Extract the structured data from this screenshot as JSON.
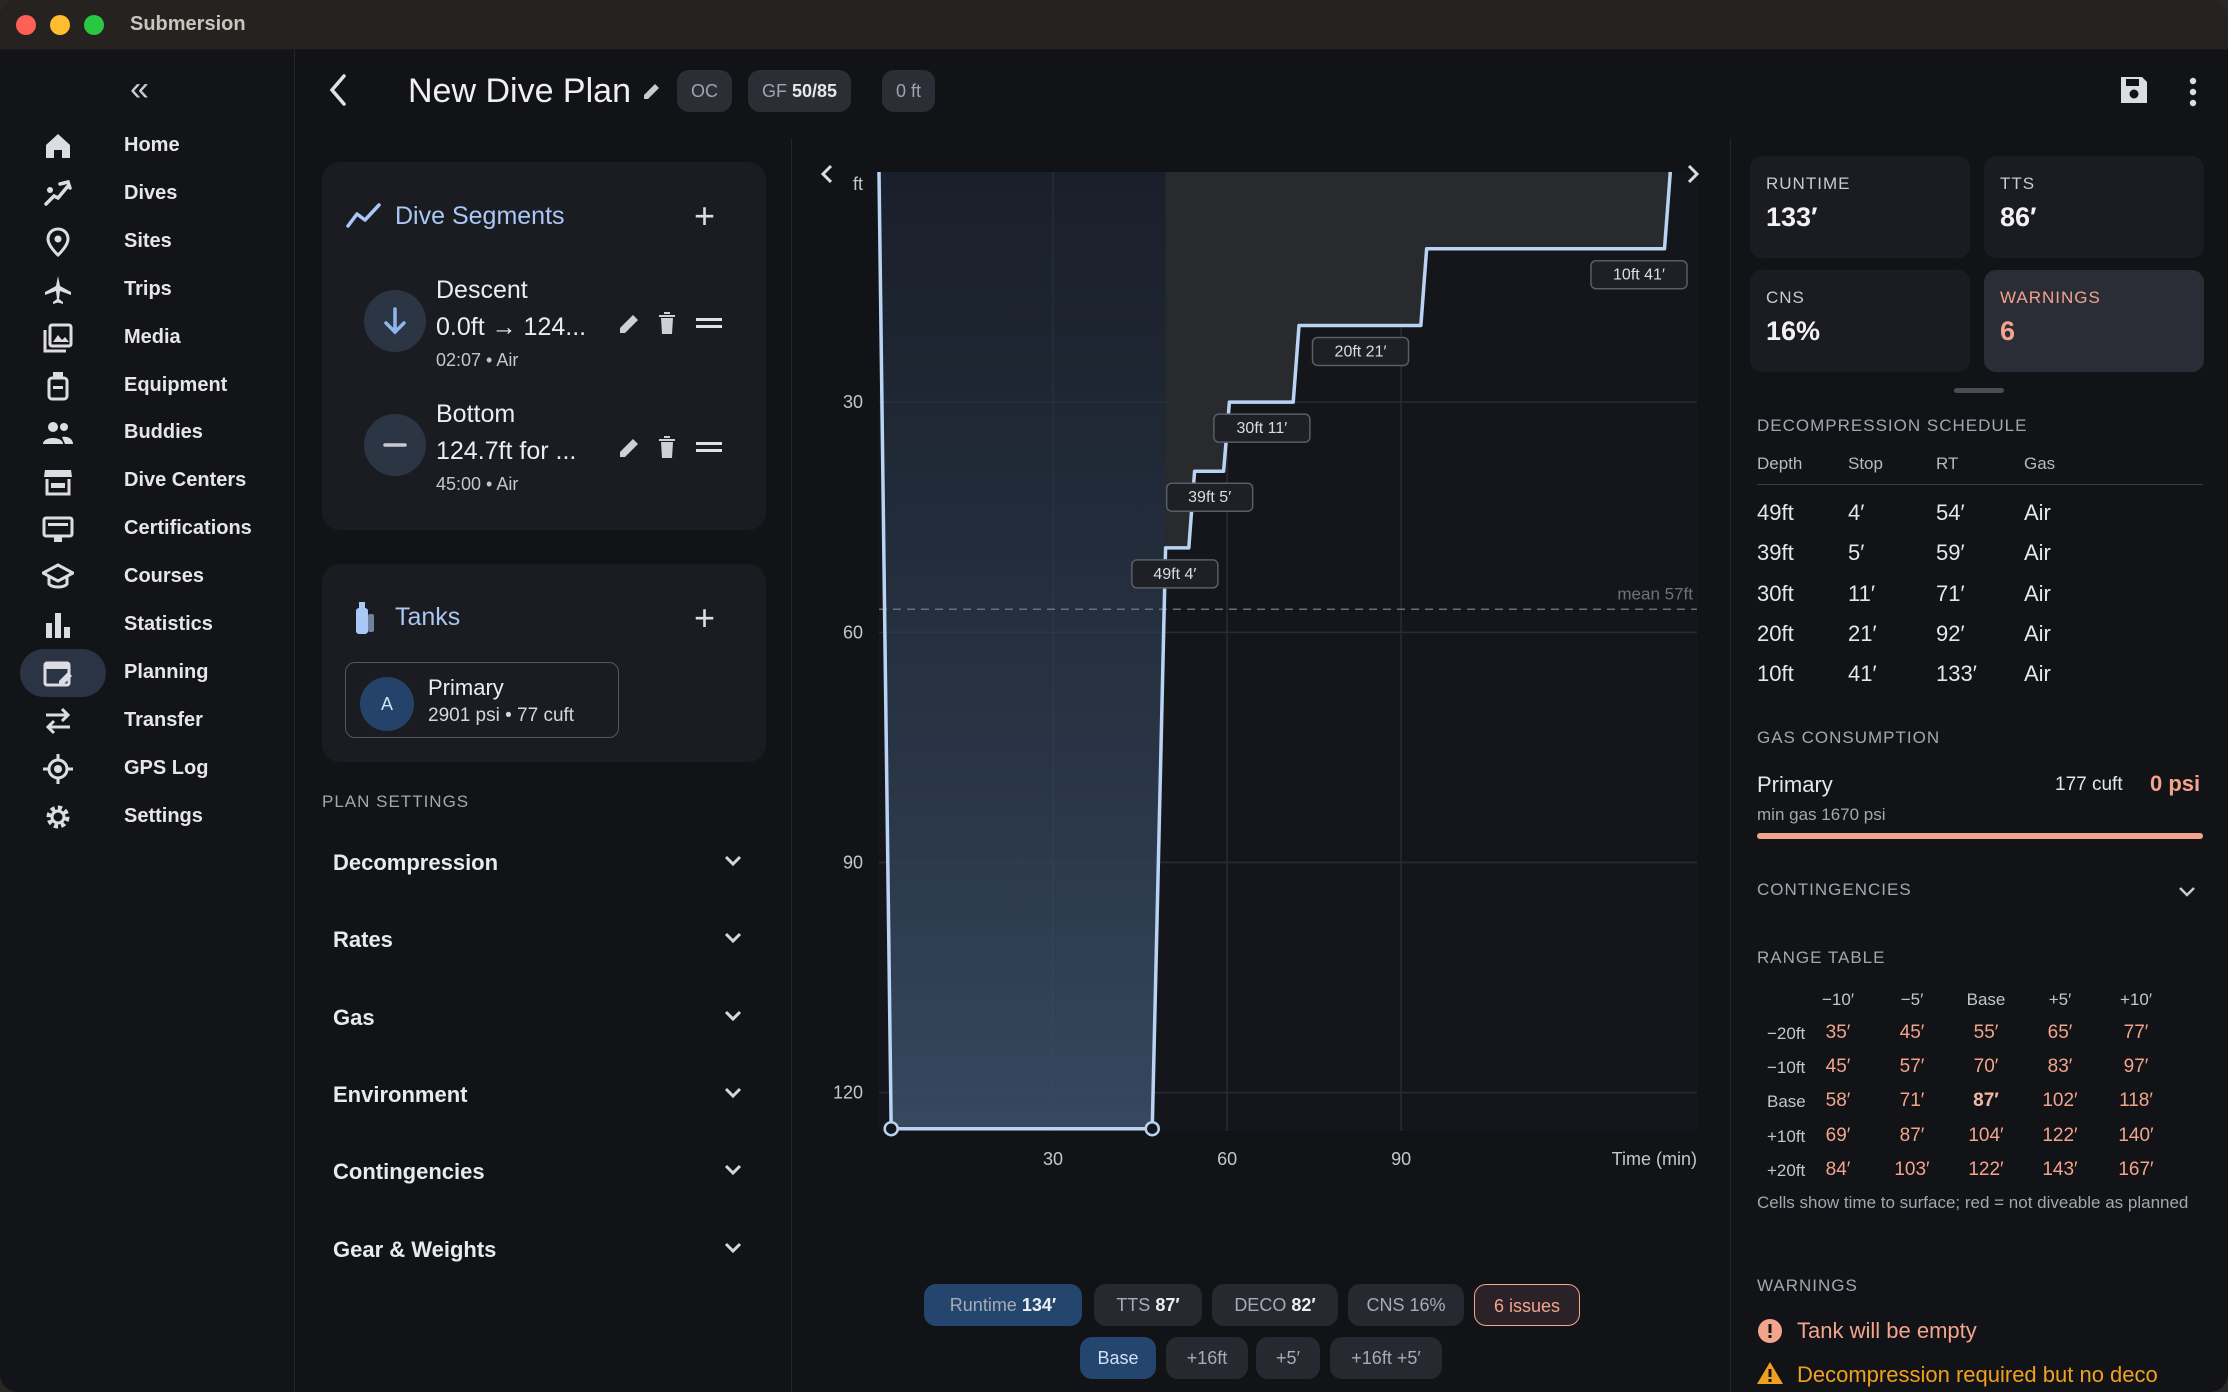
{
  "app": {
    "title": "Submersion"
  },
  "sidebar": {
    "items": [
      {
        "label": "Home",
        "icon": "home-icon"
      },
      {
        "label": "Dives",
        "icon": "diver-icon"
      },
      {
        "label": "Sites",
        "icon": "location-pin-icon"
      },
      {
        "label": "Trips",
        "icon": "airplane-icon"
      },
      {
        "label": "Media",
        "icon": "photo-library-icon"
      },
      {
        "label": "Equipment",
        "icon": "equipment-icon"
      },
      {
        "label": "Buddies",
        "icon": "people-icon"
      },
      {
        "label": "Dive Centers",
        "icon": "storefront-icon"
      },
      {
        "label": "Certifications",
        "icon": "card-icon"
      },
      {
        "label": "Courses",
        "icon": "school-icon"
      },
      {
        "label": "Statistics",
        "icon": "bar-chart-icon"
      },
      {
        "label": "Planning",
        "icon": "calendar-edit-icon"
      },
      {
        "label": "Transfer",
        "icon": "swap-icon"
      },
      {
        "label": "GPS Log",
        "icon": "gps-icon"
      },
      {
        "label": "Settings",
        "icon": "gear-icon"
      }
    ],
    "active": "Planning"
  },
  "header": {
    "title": "New Dive Plan",
    "chip_oc": "OC",
    "chip_gf_label": "GF",
    "chip_gf_value": "50/85",
    "chip_depth": "0 ft"
  },
  "segments": {
    "title": "Dive Segments",
    "items": [
      {
        "name": "Descent",
        "detail": "0.0ft → 124...",
        "meta": "02:07 • Air",
        "icon": "arrow-down-icon"
      },
      {
        "name": "Bottom",
        "detail": "124.7ft for ...",
        "meta": "45:00 • Air",
        "icon": "minus-icon"
      }
    ]
  },
  "tanks": {
    "title": "Tanks",
    "items": [
      {
        "avatar": "A",
        "name": "Primary",
        "meta": "2901 psi • 77 cuft"
      }
    ]
  },
  "plan_settings": {
    "label": "PLAN SETTINGS",
    "sections": [
      "Decompression",
      "Rates",
      "Gas",
      "Environment",
      "Contingencies",
      "Gear & Weights"
    ]
  },
  "chart_data": {
    "type": "line",
    "title": "",
    "xlabel": "Time (min)",
    "ylabel": "ft",
    "x_ticks": [
      30,
      60,
      90
    ],
    "y_ticks": [
      30,
      60,
      90,
      120
    ],
    "xlim": [
      0,
      141
    ],
    "ylim": [
      0,
      125
    ],
    "y_inverted": true,
    "series": [
      {
        "points": [
          [
            0,
            0
          ],
          [
            2.1,
            124.7
          ],
          [
            47.1,
            124.7
          ],
          [
            49.4,
            49
          ],
          [
            53.4,
            49
          ],
          [
            54.4,
            39
          ],
          [
            59.4,
            39
          ],
          [
            60.4,
            30
          ],
          [
            71.4,
            30
          ],
          [
            72.4,
            20
          ],
          [
            93.4,
            20
          ],
          [
            94.4,
            10
          ],
          [
            135.4,
            10
          ],
          [
            136.4,
            0
          ]
        ]
      }
    ],
    "stop_labels": [
      {
        "text": "49ft 4′",
        "x": 51,
        "y": 49
      },
      {
        "text": "39ft 5′",
        "x": 57,
        "y": 39
      },
      {
        "text": "30ft 11′",
        "x": 66,
        "y": 30
      },
      {
        "text": "20ft 21′",
        "x": 83,
        "y": 20
      },
      {
        "text": "10ft 41′",
        "x": 131,
        "y": 10
      }
    ],
    "mean_line": {
      "label": "mean 57ft",
      "y": 57
    },
    "grid": true
  },
  "chart_footer": {
    "runtime_label": "Runtime",
    "runtime_value": "134′",
    "tts_label": "TTS",
    "tts_value": "87′",
    "deco_label": "DECO",
    "deco_value": "82′",
    "cns": "CNS 16%",
    "issues": "6 issues",
    "scenarios": [
      "Base",
      "+16ft",
      "+5′",
      "+16ft +5′"
    ],
    "active_scenario": "Base"
  },
  "summary": {
    "runtime_label": "RUNTIME",
    "runtime_value": "133′",
    "tts_label": "TTS",
    "tts_value": "86′",
    "cns_label": "CNS",
    "cns_value": "16%",
    "warnings_label": "WARNINGS",
    "warnings_value": "6"
  },
  "deco_schedule": {
    "label": "DECOMPRESSION SCHEDULE",
    "headers": [
      "Depth",
      "Stop",
      "RT",
      "Gas"
    ],
    "rows": [
      [
        "49ft",
        "4′",
        "54′",
        "Air"
      ],
      [
        "39ft",
        "5′",
        "59′",
        "Air"
      ],
      [
        "30ft",
        "11′",
        "71′",
        "Air"
      ],
      [
        "20ft",
        "21′",
        "92′",
        "Air"
      ],
      [
        "10ft",
        "41′",
        "133′",
        "Air"
      ]
    ]
  },
  "gas_consumption": {
    "label": "GAS CONSUMPTION",
    "tank": "Primary",
    "volume": "177 cuft",
    "remaining": "0 psi",
    "min_gas": "min gas 1670 psi",
    "usage_fraction": 1.0
  },
  "contingencies": {
    "label": "CONTINGENCIES"
  },
  "range_table": {
    "label": "RANGE TABLE",
    "col_headers": [
      "−10′",
      "−5′",
      "Base",
      "+5′",
      "+10′"
    ],
    "rows": [
      {
        "label": "−20ft",
        "values": [
          "35′",
          "45′",
          "55′",
          "65′",
          "77′"
        ]
      },
      {
        "label": "−10ft",
        "values": [
          "45′",
          "57′",
          "70′",
          "83′",
          "97′"
        ]
      },
      {
        "label": "Base",
        "values": [
          "58′",
          "71′",
          "87′",
          "102′",
          "118′"
        ]
      },
      {
        "label": "+10ft",
        "values": [
          "69′",
          "87′",
          "104′",
          "122′",
          "140′"
        ]
      },
      {
        "label": "+20ft",
        "values": [
          "84′",
          "103′",
          "122′",
          "143′",
          "167′"
        ]
      }
    ],
    "note": "Cells show time to surface; red = not diveable as planned"
  },
  "warnings": {
    "label": "WARNINGS",
    "items": [
      {
        "text": "Tank will be empty",
        "severity": "error"
      },
      {
        "text": "Decompression required but no deco",
        "severity": "warning"
      }
    ]
  },
  "colors": {
    "accent": "#a9c8f5",
    "warning": "#f2a48c",
    "alert": "#f0a020",
    "profile": "#b9d3f3"
  }
}
